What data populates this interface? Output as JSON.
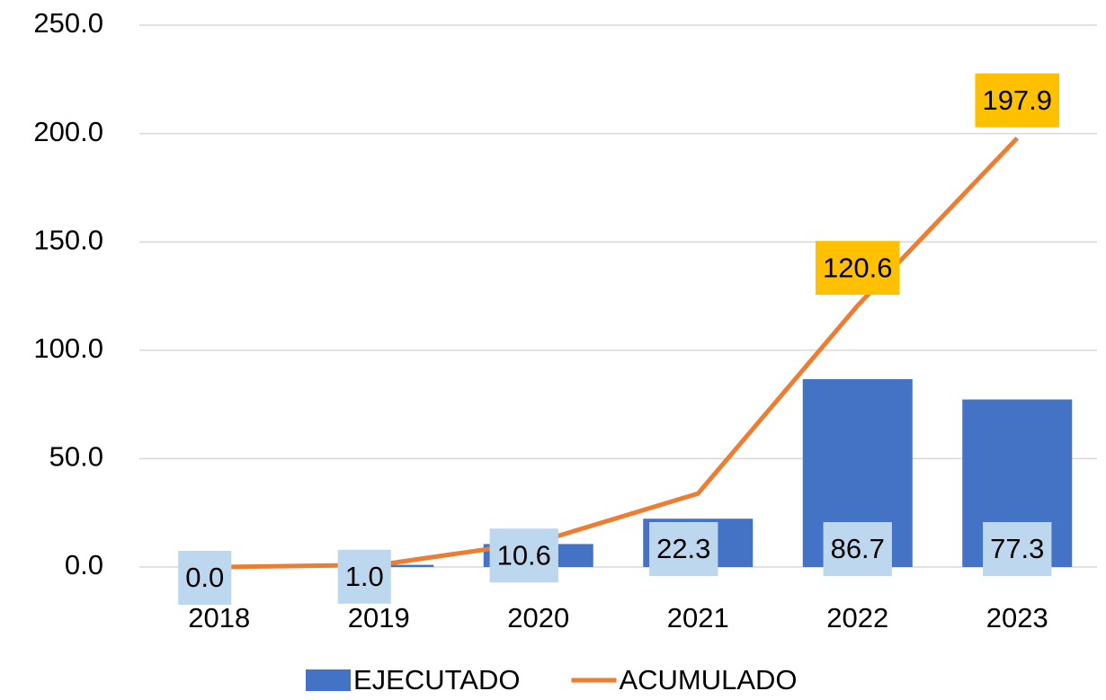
{
  "chart_data": {
    "type": "bar",
    "categories": [
      "2018",
      "2019",
      "2020",
      "2021",
      "2022",
      "2023"
    ],
    "series": [
      {
        "name": "EJECUTADO",
        "type": "bar",
        "color": "#4472c4",
        "label_color": "#bdd7ee",
        "values": [
          0,
          1,
          10.6,
          22.3,
          86.7,
          77.3
        ],
        "value_labels": [
          "0.0",
          "1.0",
          "10.6",
          "22.3",
          "86.7",
          "77.3"
        ]
      },
      {
        "name": "ACUMULADO",
        "type": "line",
        "color": "#ed7d31",
        "label_color": "#ffc000",
        "values": [
          0,
          1,
          11.6,
          33.9,
          120.6,
          197.9
        ],
        "value_labels": [
          null,
          null,
          null,
          null,
          "120.6",
          "197.9"
        ]
      }
    ],
    "ylim": [
      0,
      250
    ],
    "yticks": [
      {
        "value": 0,
        "label": "0.0"
      },
      {
        "value": 50,
        "label": "50.0"
      },
      {
        "value": 100,
        "label": "100.0"
      },
      {
        "value": 150,
        "label": "150.0"
      },
      {
        "value": 200,
        "label": "200.0"
      },
      {
        "value": 250,
        "label": "250.0"
      }
    ],
    "grid": true,
    "legend": "bottom"
  }
}
